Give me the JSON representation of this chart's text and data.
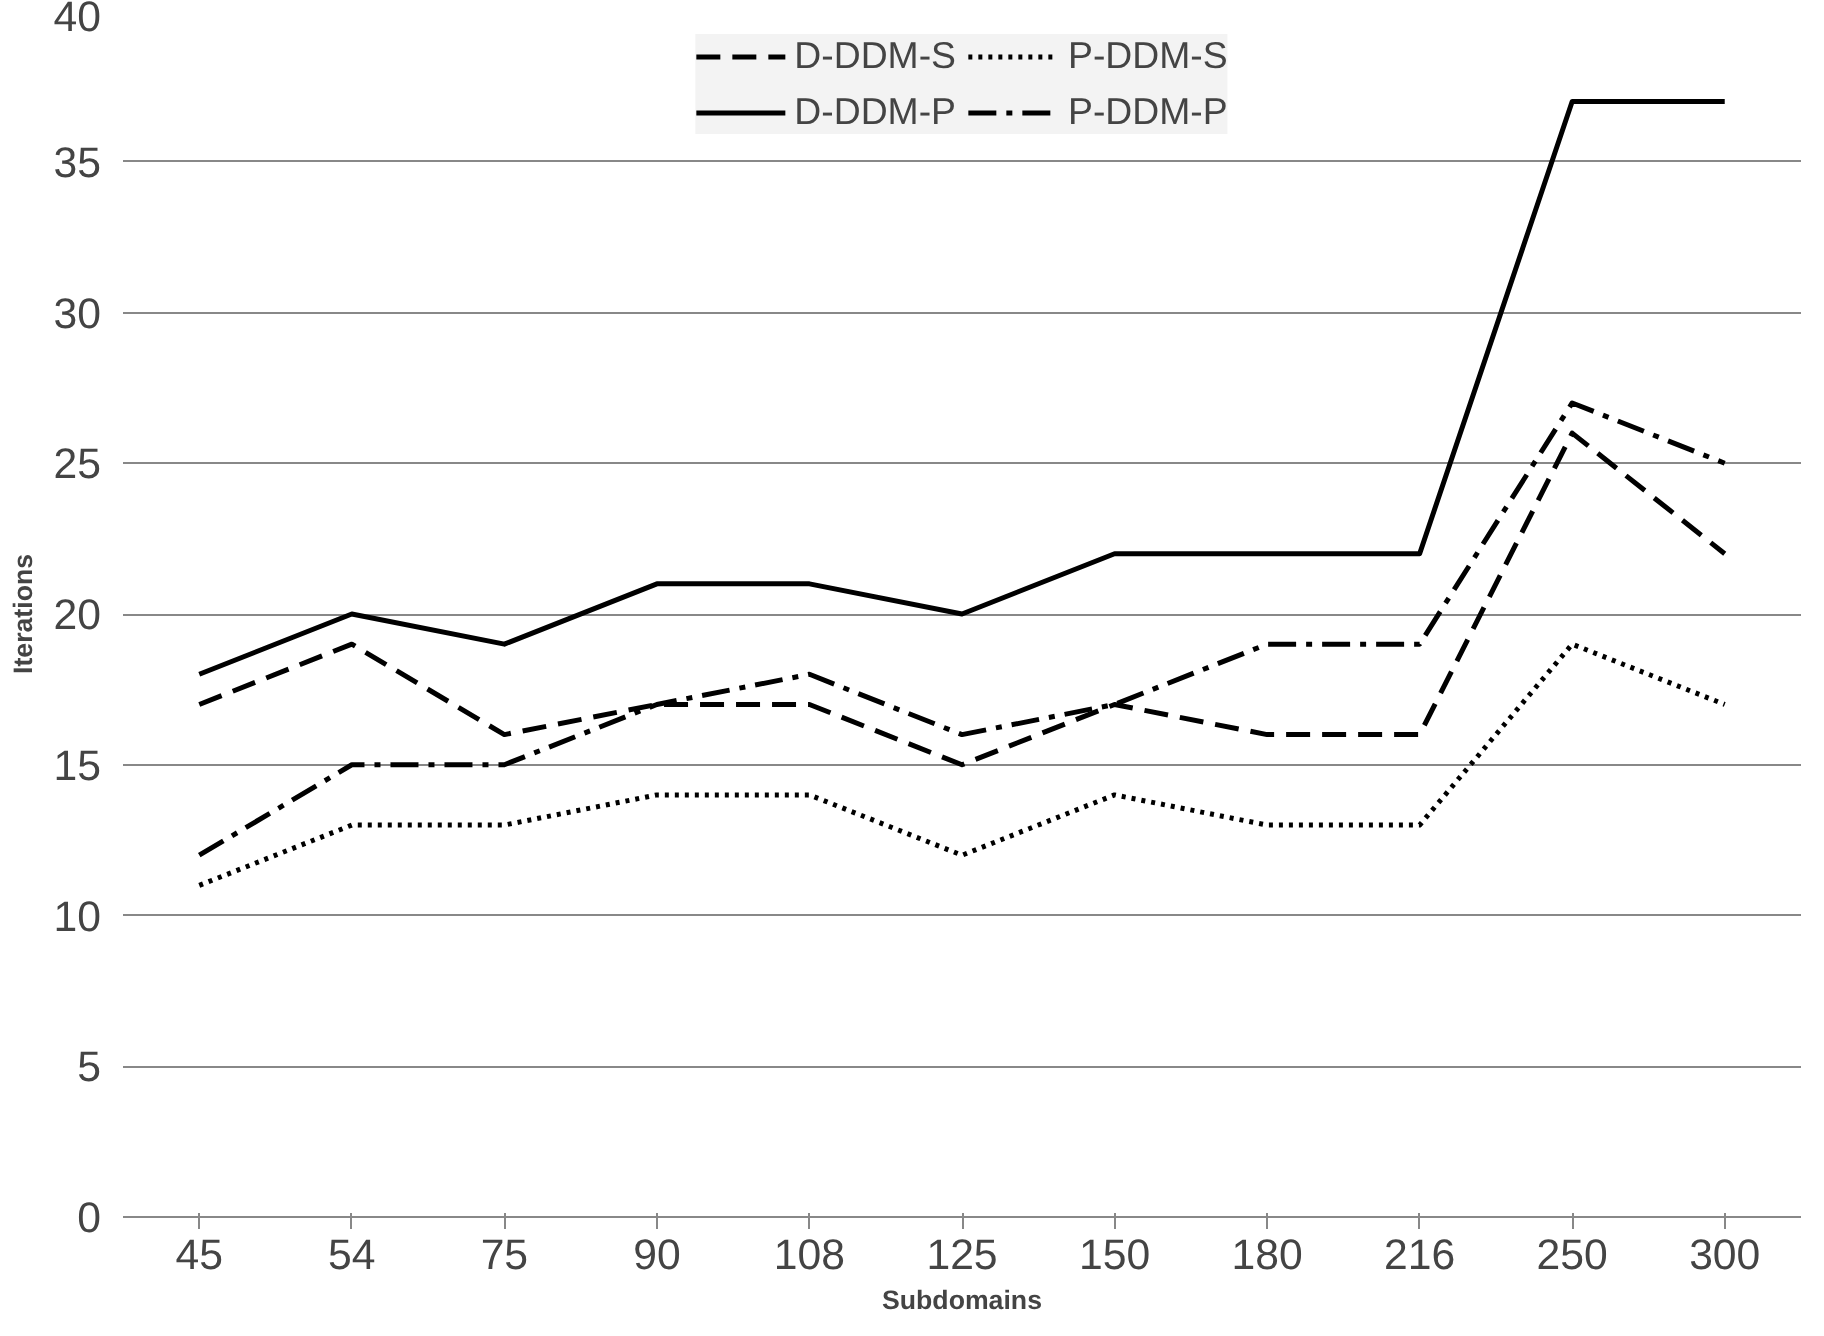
{
  "chart_data": {
    "type": "line",
    "xlabel": "Subdomains",
    "ylabel": "Iterations",
    "categories": [
      "45",
      "54",
      "75",
      "90",
      "108",
      "125",
      "150",
      "180",
      "216",
      "250",
      "300"
    ],
    "ylim": [
      0,
      40
    ],
    "yticks": [
      0,
      5,
      10,
      15,
      20,
      25,
      30,
      35,
      40
    ],
    "grid": "y",
    "legend": "top",
    "marker": "none",
    "series": [
      {
        "name": "D-DDM-S",
        "color": "#000000",
        "line_style": "dashed",
        "values": [
          17,
          19,
          16,
          17,
          17,
          15,
          17,
          16,
          16,
          26,
          22
        ]
      },
      {
        "name": "D-DDM-P",
        "color": "#000000",
        "line_style": "solid",
        "values": [
          18,
          20,
          19,
          21,
          21,
          20,
          22,
          22,
          22,
          37,
          37
        ]
      },
      {
        "name": "P-DDM-S",
        "color": "#000000",
        "line_style": "dotted",
        "values": [
          11,
          13,
          13,
          14,
          14,
          12,
          14,
          13,
          13,
          19,
          17
        ]
      },
      {
        "name": "P-DDM-P",
        "color": "#000000",
        "line_style": "dashdot",
        "values": [
          12,
          15,
          15,
          17,
          18,
          16,
          17,
          19,
          19,
          27,
          25
        ]
      }
    ]
  }
}
